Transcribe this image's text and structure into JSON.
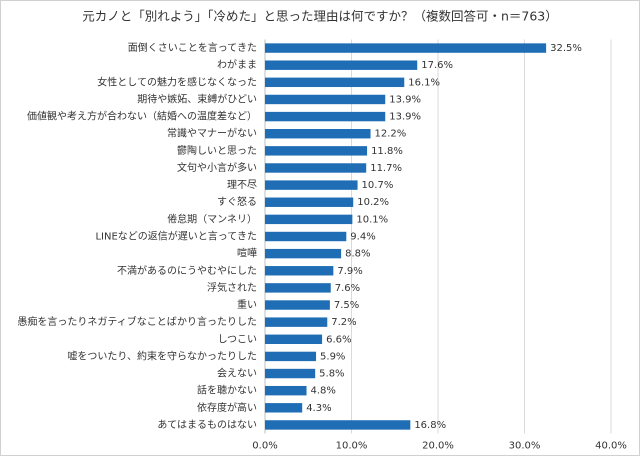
{
  "chart_data": {
    "type": "bar",
    "orientation": "horizontal",
    "title": "元カノと「別れよう」「冷めた」と思った理由は何ですか？（複数回答可・n＝763）",
    "categories": [
      "面倒くさいことを言ってきた",
      "わがまま",
      "女性としての魅力を感じなくなった",
      "期待や嫉妬、束縛がひどい",
      "価値観や考え方が合わない（結婚への温度差など）",
      "常識やマナーがない",
      "鬱陶しいと思った",
      "文句や小言が多い",
      "理不尽",
      "すぐ怒る",
      "倦怠期（マンネリ）",
      "LINEなどの返信が遅いと言ってきた",
      "喧嘩",
      "不満があるのにうやむやにした",
      "浮気された",
      "重い",
      "愚痴を言ったりネガティブなことばかり言ったりした",
      "しつこい",
      "嘘をついたり、約束を守らなかったりした",
      "会えない",
      "話を聴かない",
      "依存度が高い",
      "あてはまるものはない"
    ],
    "values": [
      32.5,
      17.6,
      16.1,
      13.9,
      13.9,
      12.2,
      11.8,
      11.7,
      10.7,
      10.2,
      10.1,
      9.4,
      8.8,
      7.9,
      7.6,
      7.5,
      7.2,
      6.6,
      5.9,
      5.8,
      4.8,
      4.3,
      16.8
    ],
    "value_labels": [
      "32.5%",
      "17.6%",
      "16.1%",
      "13.9%",
      "13.9%",
      "12.2%",
      "11.8%",
      "11.7%",
      "10.7%",
      "10.2%",
      "10.1%",
      "9.4%",
      "8.8%",
      "7.9%",
      "7.6%",
      "7.5%",
      "7.2%",
      "6.6%",
      "5.9%",
      "5.8%",
      "4.8%",
      "4.3%",
      "16.8%"
    ],
    "color": "#1f6db5",
    "xlim": [
      0,
      40
    ],
    "xticks": [
      {
        "value": 0,
        "label": "0.0%"
      },
      {
        "value": 10,
        "label": "10.0%"
      },
      {
        "value": 20,
        "label": "20.0%"
      },
      {
        "value": 30,
        "label": "30.0%"
      },
      {
        "value": 40,
        "label": "40.0%"
      }
    ],
    "grid": true
  }
}
